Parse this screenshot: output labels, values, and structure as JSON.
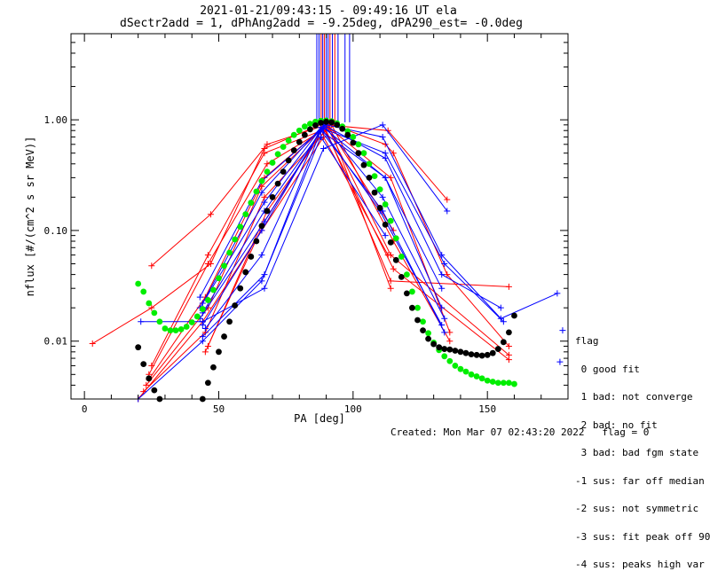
{
  "header": {
    "title": "2021-01-21/09:43:15 - 09:49:16 UT ela",
    "subtitle": "dSectr2add = 1, dPhAng2add = -9.25deg, dPA290_est=  -0.0deg"
  },
  "footer": {
    "created": "Created: Mon Mar 07 02:43:20 2022",
    "flag": "flag = 0"
  },
  "flag_legend": {
    "title": "flag",
    "items": [
      " 0 good fit",
      " 1 bad: not converge",
      " 2 bad: no fit",
      " 3 bad: bad fgm state",
      "-1 sus: far off median",
      "-2 sus: not symmetric",
      "-3 sus: fit peak off 90",
      "-4 sus: peaks high var"
    ]
  },
  "colors": {
    "red": "#ff0000",
    "blue": "#0000ff",
    "green": "#00ee00",
    "black": "#000000"
  },
  "chart_data": {
    "type": "scatter",
    "xlabel": "PA [deg]",
    "ylabel": "nflux [#/(cm^2 s sr MeV)]",
    "xlim": [
      -5,
      180
    ],
    "ylim": [
      0.003,
      6.0
    ],
    "yscale": "log",
    "x_ticks": [
      0,
      50,
      100,
      150
    ],
    "x_tick_labels": [
      "0",
      "50",
      "100",
      "150"
    ],
    "y_ticks": [
      0.01,
      0.1,
      1.0
    ],
    "y_tick_labels": [
      "0.01",
      "0.10",
      "1.00"
    ],
    "vertical_markers": [
      {
        "x": 86.5,
        "color": "#0000ff"
      },
      {
        "x": 87.3,
        "color": "#0000ff"
      },
      {
        "x": 88.1,
        "color": "#ff0000"
      },
      {
        "x": 88.7,
        "color": "#0000ff"
      },
      {
        "x": 89.3,
        "color": "#ff0000"
      },
      {
        "x": 90.0,
        "color": "#0000ff"
      },
      {
        "x": 90.7,
        "color": "#0000ff"
      },
      {
        "x": 91.4,
        "color": "#ff0000"
      },
      {
        "x": 92.3,
        "color": "#0000ff"
      },
      {
        "x": 93.2,
        "color": "#ff0000"
      },
      {
        "x": 94.4,
        "color": "#0000ff"
      },
      {
        "x": 97.0,
        "color": "#0000ff"
      },
      {
        "x": 98.7,
        "color": "#0000ff"
      }
    ],
    "series": [
      {
        "color": "#ff0000",
        "x": [
          3,
          25,
          47,
          67,
          90,
          112,
          115,
          135,
          158
        ],
        "y": [
          0.0095,
          0.02,
          0.05,
          0.55,
          0.95,
          0.6,
          0.5,
          0.04,
          0.009
        ]
      },
      {
        "color": "#ff0000",
        "x": [
          25,
          47,
          68,
          90,
          113,
          135
        ],
        "y": [
          0.048,
          0.14,
          0.6,
          0.9,
          0.8,
          0.19
        ]
      },
      {
        "color": "#ff0000",
        "x": [
          25,
          46,
          67,
          91,
          114,
          136
        ],
        "y": [
          0.006,
          0.06,
          0.5,
          0.85,
          0.3,
          0.012
        ]
      },
      {
        "color": "#ff0000",
        "x": [
          24,
          46,
          68,
          92,
          115,
          136
        ],
        "y": [
          0.005,
          0.05,
          0.4,
          0.9,
          0.08,
          0.01
        ]
      },
      {
        "color": "#ff0000",
        "x": [
          24,
          45,
          67,
          90,
          114,
          158
        ],
        "y": [
          0.0045,
          0.025,
          0.3,
          0.9,
          0.06,
          0.0075
        ]
      },
      {
        "color": "#ff0000",
        "x": [
          23,
          46,
          66,
          89,
          115,
          158
        ],
        "y": [
          0.004,
          0.02,
          0.25,
          0.85,
          0.045,
          0.0068
        ]
      },
      {
        "color": "#ff0000",
        "x": [
          22,
          45,
          67,
          90,
          114,
          158
        ],
        "y": [
          0.0035,
          0.012,
          0.2,
          0.8,
          0.035,
          0.031
        ]
      },
      {
        "color": "#ff0000",
        "x": [
          46,
          68,
          91,
          114
        ],
        "y": [
          0.009,
          0.15,
          0.9,
          0.03
        ]
      },
      {
        "color": "#ff0000",
        "x": [
          45,
          67,
          90,
          115
        ],
        "y": [
          0.008,
          0.12,
          0.92,
          0.1
        ]
      },
      {
        "color": "#ff0000",
        "x": [
          20,
          44,
          66,
          89,
          113
        ],
        "y": [
          0.003,
          0.015,
          0.1,
          0.7,
          0.06
        ]
      },
      {
        "color": "#0000ff",
        "x": [
          21,
          44,
          67,
          89,
          111,
          135
        ],
        "y": [
          0.015,
          0.015,
          0.03,
          0.55,
          0.9,
          0.15
        ]
      },
      {
        "color": "#0000ff",
        "x": [
          43,
          66,
          90,
          111,
          133,
          155,
          176
        ],
        "y": [
          0.025,
          0.28,
          0.9,
          0.7,
          0.06,
          0.016,
          0.027
        ]
      },
      {
        "color": "#0000ff",
        "x": [
          44,
          66,
          88,
          112,
          134,
          156
        ],
        "y": [
          0.022,
          0.22,
          0.85,
          0.5,
          0.05,
          0.015
        ]
      },
      {
        "color": "#0000ff",
        "x": [
          43,
          67,
          89,
          112,
          133,
          155
        ],
        "y": [
          0.02,
          0.18,
          0.9,
          0.45,
          0.04,
          0.02
        ]
      },
      {
        "color": "#0000ff",
        "x": [
          44,
          67,
          89,
          112,
          133
        ],
        "y": [
          0.018,
          0.15,
          0.85,
          0.3,
          0.03
        ]
      },
      {
        "color": "#0000ff",
        "x": [
          43,
          67,
          88,
          112,
          133
        ],
        "y": [
          0.016,
          0.12,
          0.8,
          0.3,
          0.02
        ]
      },
      {
        "color": "#0000ff",
        "x": [
          44,
          66,
          89,
          111,
          134
        ],
        "y": [
          0.014,
          0.1,
          0.9,
          0.2,
          0.016
        ]
      },
      {
        "color": "#0000ff",
        "x": [
          45,
          66,
          88,
          110,
          133
        ],
        "y": [
          0.013,
          0.06,
          0.85,
          0.15,
          0.014
        ]
      },
      {
        "color": "#0000ff",
        "x": [
          44,
          67,
          88,
          111,
          134
        ],
        "y": [
          0.011,
          0.04,
          0.8,
          0.15,
          0.012
        ]
      },
      {
        "color": "#0000ff",
        "x": [
          20,
          44,
          66,
          88,
          112
        ],
        "y": [
          0.003,
          0.01,
          0.035,
          0.7,
          0.09
        ]
      },
      {
        "color": "#0000ff",
        "x": [
          178
        ],
        "y": [
          0.0125
        ]
      },
      {
        "color": "#0000ff",
        "x": [
          177
        ],
        "y": [
          0.0065
        ]
      }
    ],
    "fits": [
      {
        "color": "#00ee00",
        "x": [
          20,
          22,
          24,
          26,
          28,
          30,
          32,
          34,
          36,
          38,
          40,
          42,
          44,
          46,
          48,
          50,
          52,
          54,
          56,
          58,
          60,
          62,
          64,
          66,
          68,
          70,
          72,
          74,
          76,
          78,
          80,
          82,
          84,
          86,
          88,
          90,
          92,
          94,
          96,
          98,
          100,
          102,
          104,
          106,
          108,
          110,
          112,
          114,
          116,
          118,
          120,
          122,
          124,
          126,
          128,
          130,
          132,
          134,
          136,
          138,
          140,
          142,
          144,
          146,
          148,
          150,
          152,
          154,
          156,
          158,
          160
        ],
        "y": [
          0.033,
          0.028,
          0.022,
          0.018,
          0.015,
          0.013,
          0.0125,
          0.0125,
          0.0128,
          0.0135,
          0.0148,
          0.0167,
          0.0195,
          0.0235,
          0.029,
          0.037,
          0.048,
          0.063,
          0.083,
          0.108,
          0.14,
          0.178,
          0.225,
          0.28,
          0.34,
          0.41,
          0.49,
          0.57,
          0.65,
          0.73,
          0.8,
          0.87,
          0.92,
          0.96,
          0.98,
          0.985,
          0.97,
          0.93,
          0.87,
          0.79,
          0.7,
          0.6,
          0.5,
          0.4,
          0.31,
          0.235,
          0.172,
          0.122,
          0.085,
          0.058,
          0.04,
          0.028,
          0.02,
          0.015,
          0.0118,
          0.0097,
          0.0083,
          0.0073,
          0.0066,
          0.006,
          0.0056,
          0.0053,
          0.005,
          0.0048,
          0.0046,
          0.0044,
          0.0043,
          0.0042,
          0.0042,
          0.0042,
          0.0041
        ]
      },
      {
        "color": "#000000",
        "x": [
          20,
          22,
          24,
          26,
          28
        ],
        "y": [
          0.0088,
          0.0062,
          0.0046,
          0.0036,
          0.003
        ]
      },
      {
        "color": "#000000",
        "x": [
          44,
          46,
          48,
          50,
          52,
          54,
          56,
          58,
          60,
          62,
          64,
          66,
          68,
          70,
          72,
          74,
          76,
          78,
          80,
          82,
          84,
          86,
          88,
          90,
          92,
          94,
          96,
          98,
          100,
          102,
          104,
          106,
          108,
          110,
          112,
          114,
          116,
          118,
          120,
          122,
          124,
          126,
          128,
          130,
          132,
          134,
          136,
          138,
          140,
          142,
          144,
          146,
          148,
          150,
          152,
          154,
          156,
          158,
          160
        ],
        "y": [
          0.003,
          0.0042,
          0.0058,
          0.008,
          0.011,
          0.015,
          0.021,
          0.03,
          0.042,
          0.058,
          0.08,
          0.11,
          0.15,
          0.2,
          0.265,
          0.34,
          0.43,
          0.53,
          0.63,
          0.73,
          0.82,
          0.89,
          0.94,
          0.96,
          0.95,
          0.9,
          0.83,
          0.73,
          0.62,
          0.5,
          0.39,
          0.3,
          0.22,
          0.16,
          0.113,
          0.078,
          0.054,
          0.038,
          0.027,
          0.02,
          0.0155,
          0.0125,
          0.0105,
          0.0094,
          0.0088,
          0.0085,
          0.0084,
          0.0082,
          0.008,
          0.0078,
          0.0076,
          0.0075,
          0.0074,
          0.0075,
          0.0078,
          0.0085,
          0.0098,
          0.012,
          0.017
        ]
      }
    ]
  }
}
